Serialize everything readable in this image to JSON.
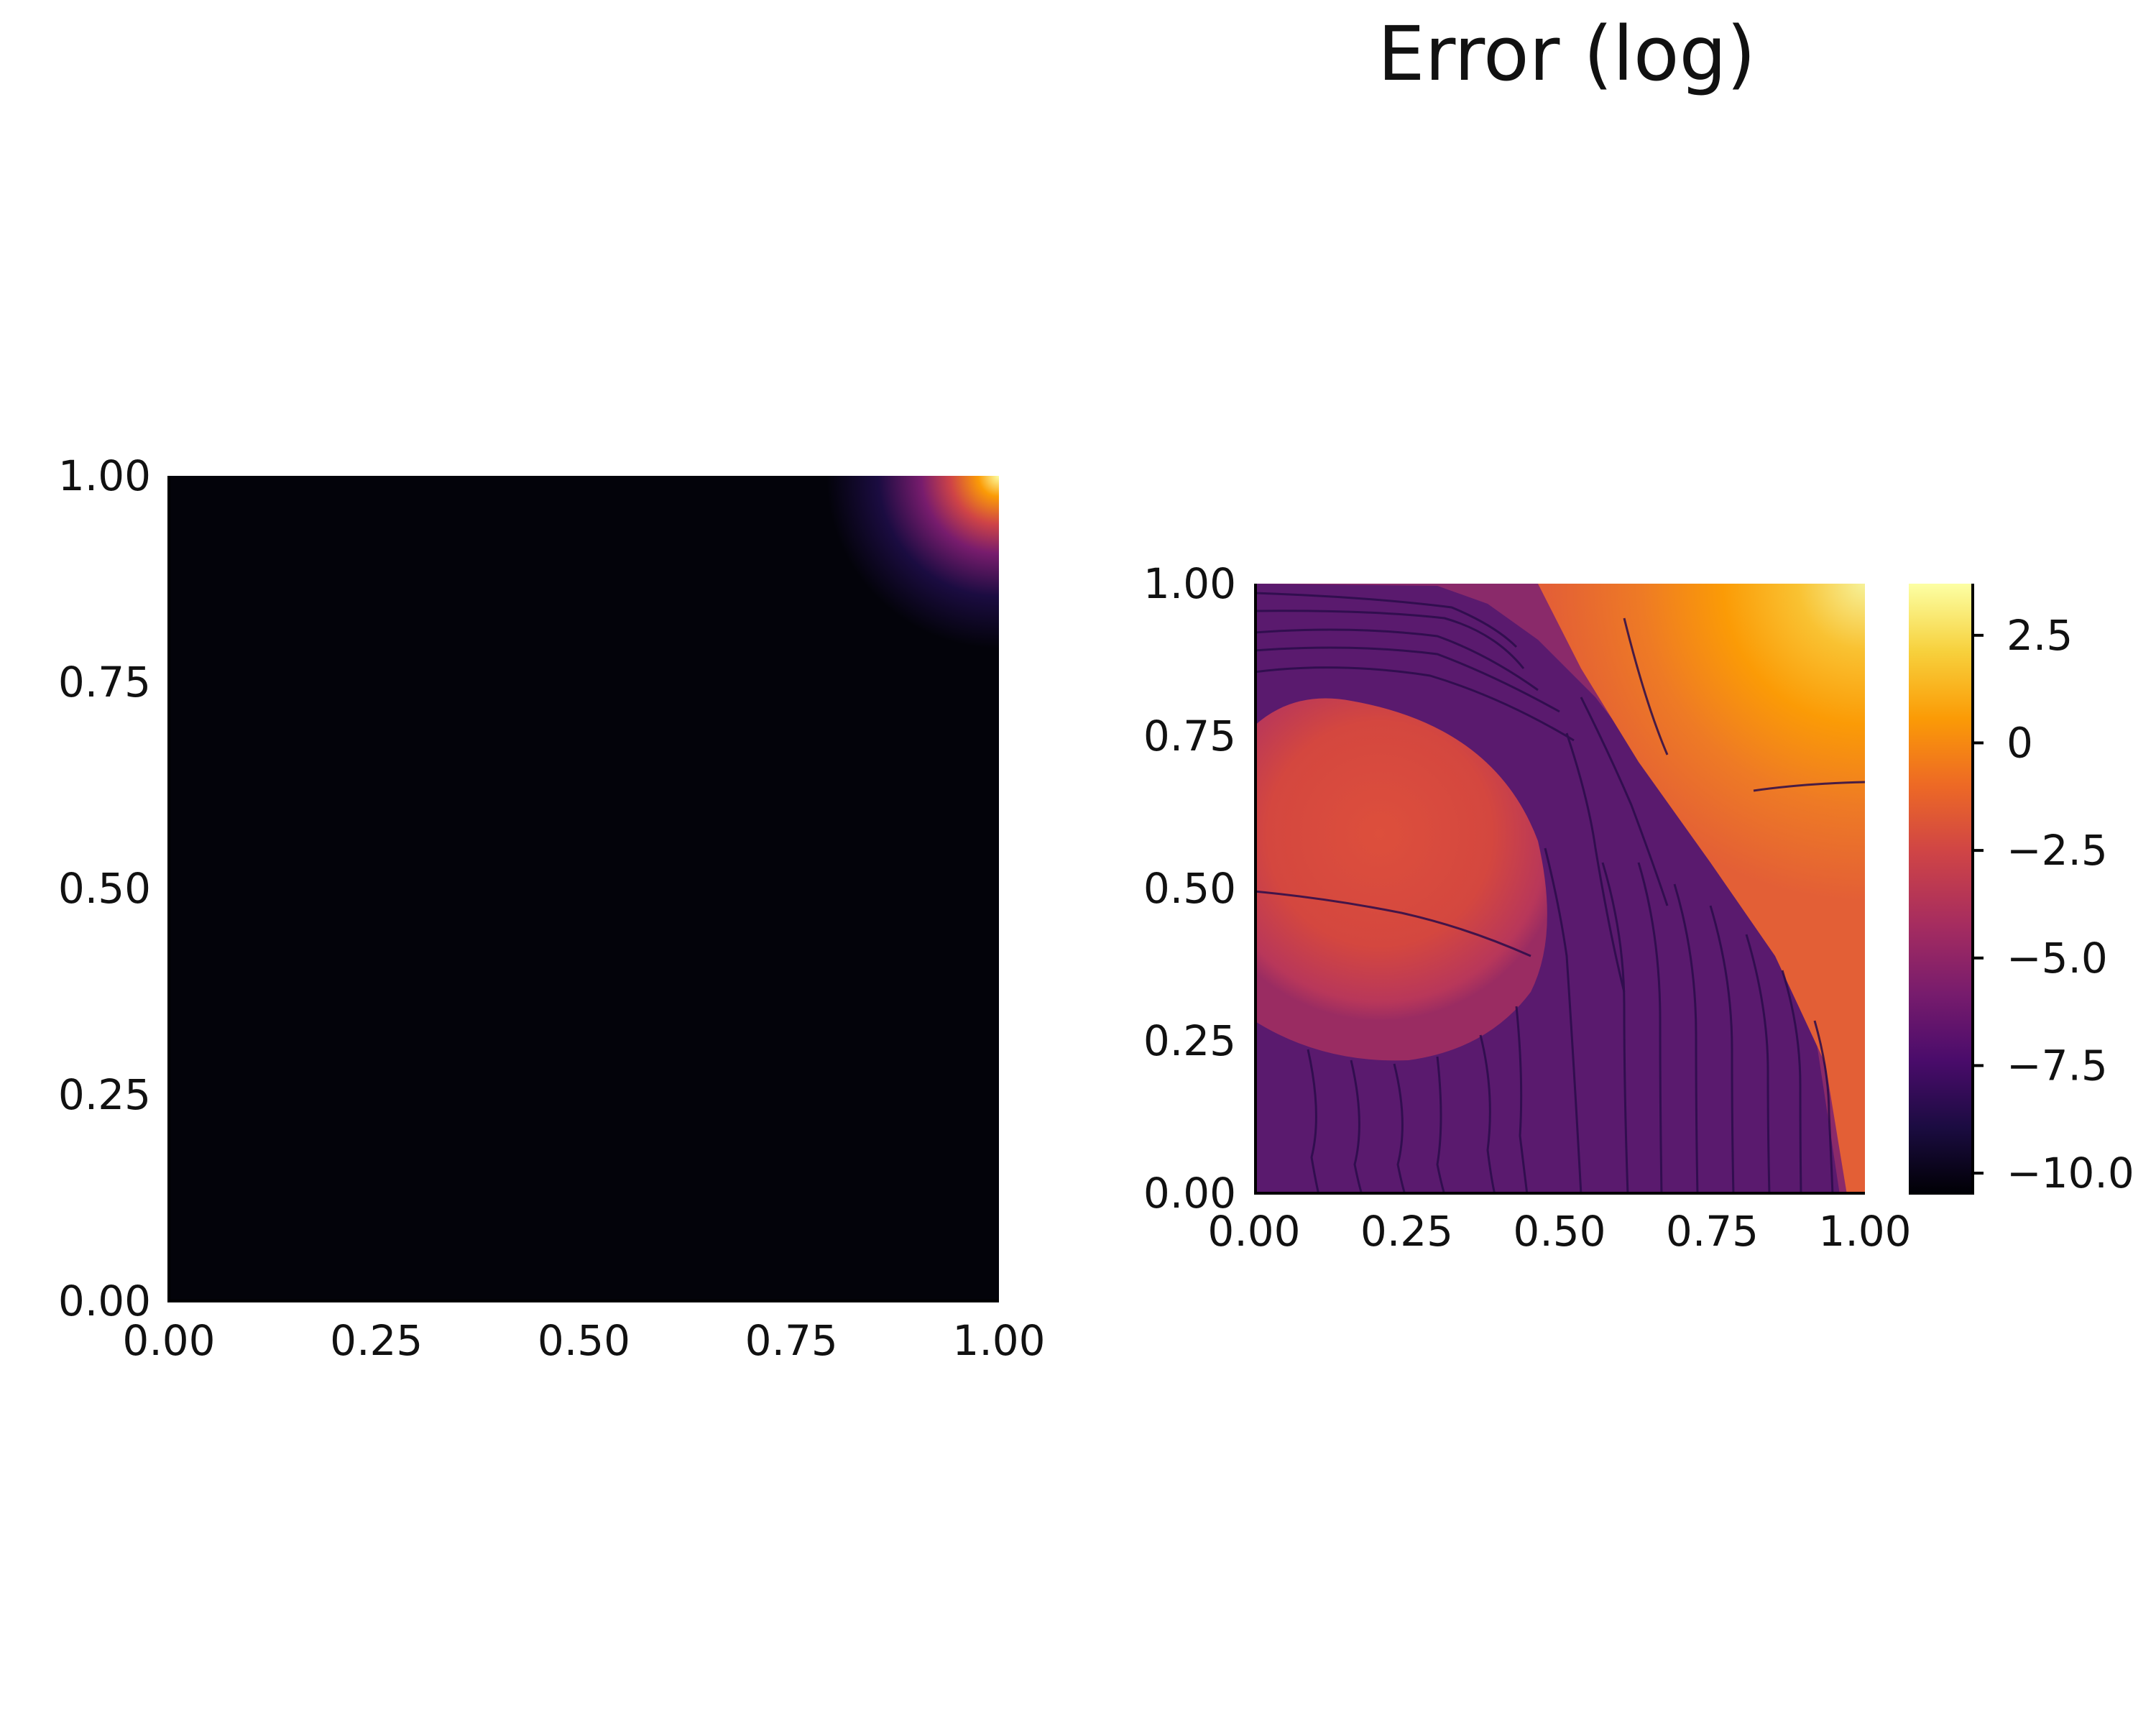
{
  "title": "Error (log)",
  "colormap": {
    "name": "inferno",
    "stops": [
      "#000004",
      "#1b0c41",
      "#4a0c6b",
      "#781c6d",
      "#a52c60",
      "#cf4446",
      "#ed6925",
      "#fb9b06",
      "#f7d13d",
      "#fcffa4"
    ]
  },
  "chart_data": [
    {
      "type": "heatmap",
      "title": "",
      "xlabel": "",
      "ylabel": "",
      "xlim": [
        0,
        1
      ],
      "ylim": [
        0,
        1
      ],
      "x_ticks": [
        "0.00",
        "0.25",
        "0.50",
        "0.75",
        "1.00"
      ],
      "y_ticks": [
        "0.00",
        "0.25",
        "0.50",
        "0.75",
        "1.00"
      ],
      "description_of_field": "Near-zero everywhere; bright peak in the upper-right corner (x≈1, y≈1)",
      "grid": false
    },
    {
      "type": "heatmap",
      "title": "Error (log)",
      "xlabel": "",
      "ylabel": "",
      "xlim": [
        0,
        1
      ],
      "ylim": [
        0,
        1
      ],
      "x_ticks": [
        "0.00",
        "0.25",
        "0.50",
        "0.75",
        "1.00"
      ],
      "y_ticks": [
        "0.00",
        "0.25",
        "0.50",
        "0.75",
        "1.00"
      ],
      "colorbar": {
        "range": [
          -10.5,
          3.7
        ],
        "ticks": [
          2.5,
          0,
          -2.5,
          -5.0,
          -7.5,
          -10.0
        ],
        "tick_labels": [
          "2.5",
          "0",
          "−2.5",
          "−5.0",
          "−7.5",
          "−10.0"
        ]
      },
      "grid": false
    }
  ]
}
